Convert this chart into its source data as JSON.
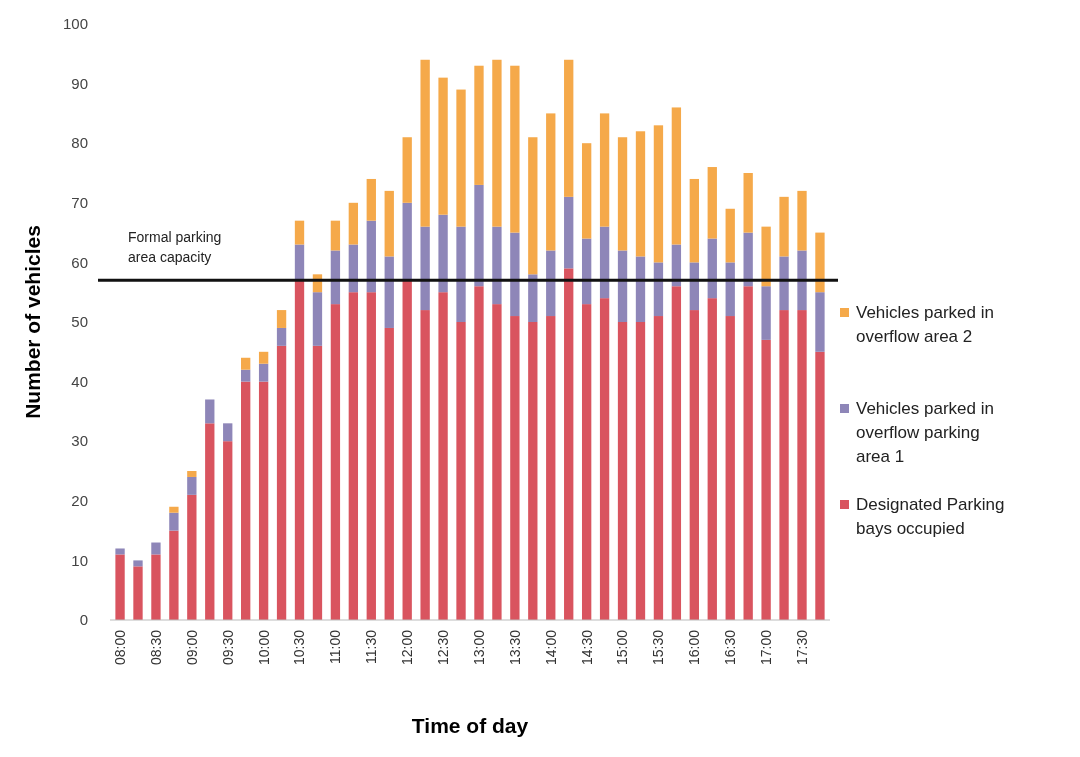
{
  "chart_data": {
    "type": "bar",
    "stacked": true,
    "xlabel": "Time of day",
    "ylabel": "Number of vehicles",
    "categories": [
      "08:00",
      null,
      "08:30",
      null,
      "09:00",
      null,
      "09:30",
      null,
      "10:00",
      null,
      "10:30",
      null,
      "11:00",
      null,
      "11:30",
      null,
      "12:00",
      null,
      "12:30",
      null,
      "13:00",
      null,
      "13:30",
      null,
      "14:00",
      null,
      "14:30",
      null,
      "15:00",
      null,
      "15:30",
      null,
      "16:00",
      null,
      "16:30",
      null,
      "17:00",
      null,
      "17:30",
      null
    ],
    "series": [
      {
        "name": "Designated Parking bays occupied",
        "color": "#d9545f",
        "values": [
          11,
          9,
          11,
          15,
          21,
          33,
          30,
          40,
          40,
          46,
          57,
          46,
          53,
          55,
          55,
          49,
          57,
          52,
          55,
          50,
          56,
          53,
          51,
          50,
          51,
          59,
          53,
          54,
          50,
          50,
          51,
          56,
          52,
          54,
          51,
          56,
          47,
          52,
          52,
          45
        ]
      },
      {
        "name": "Vehicles parked in overflow parking area 1",
        "color": "#8e86b8",
        "values": [
          1,
          1,
          2,
          3,
          3,
          4,
          3,
          2,
          3,
          3,
          6,
          9,
          9,
          8,
          12,
          12,
          13,
          14,
          13,
          16,
          17,
          13,
          14,
          8,
          11,
          12,
          11,
          12,
          12,
          11,
          9,
          7,
          8,
          10,
          9,
          9,
          9,
          9,
          10,
          10
        ]
      },
      {
        "name": "Vehicles parked in overflow area 2",
        "color": "#f5a94a",
        "values": [
          0,
          0,
          0,
          1,
          1,
          0,
          0,
          2,
          2,
          3,
          4,
          3,
          5,
          7,
          7,
          11,
          11,
          28,
          23,
          23,
          20,
          28,
          28,
          23,
          23,
          23,
          16,
          19,
          19,
          21,
          23,
          23,
          14,
          12,
          9,
          10,
          10,
          10,
          10,
          10
        ]
      }
    ],
    "ylim": [
      0,
      100
    ],
    "yticks": [
      0,
      10,
      20,
      30,
      40,
      50,
      60,
      70,
      80,
      90,
      100
    ],
    "ref_lines": [
      {
        "axis": "y",
        "value": 57,
        "label": "Formal parking area capacity",
        "color": "#111111"
      }
    ],
    "legend": "right"
  }
}
